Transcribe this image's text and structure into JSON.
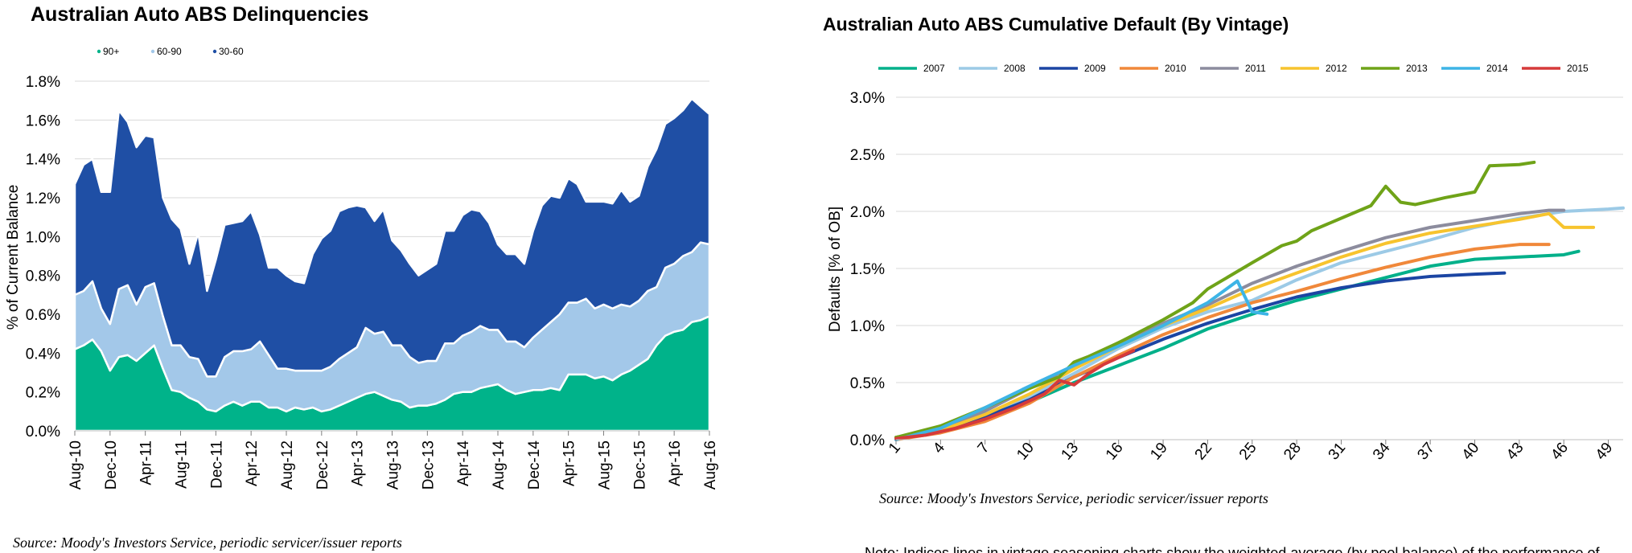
{
  "colors": {
    "d90": "#00b38a",
    "d6090": "#a3c8e9",
    "d3060": "#1f4fa5",
    "v2007": "#00b08a",
    "v2008": "#9ccae6",
    "v2009": "#1b45a3",
    "v2010": "#f0883a",
    "v2011": "#8c8c9e",
    "v2012": "#f7c42e",
    "v2013": "#6fa318",
    "v2014": "#3db4e6",
    "v2015": "#d63a3a"
  },
  "footer": {
    "left_source": "Source: Moody's Investors Service, periodic servicer/issuer reports",
    "right_source": "Source: Moody's Investors Service, periodic servicer/issuer reports",
    "note": "Note:  Indices lines in vintage seasoning charts show the weighted average (by pool balance) of the performance of"
  },
  "chart_data": [
    {
      "type": "area",
      "stacked": true,
      "title": "Australian Auto ABS Delinquencies",
      "xlabel": "",
      "ylabel": "% of Current Balance",
      "ylim": [
        0,
        1.8
      ],
      "ytick_step": 0.2,
      "ytick_labels": [
        "0.0%",
        "0.2%",
        "0.4%",
        "0.6%",
        "0.8%",
        "1.0%",
        "1.2%",
        "1.4%",
        "1.6%",
        "1.8%"
      ],
      "grid": true,
      "legend": "top-left",
      "xtick_labels": [
        "Aug-10",
        "Dec-10",
        "Apr-11",
        "Aug-11",
        "Dec-11",
        "Apr-12",
        "Aug-12",
        "Dec-12",
        "Apr-13",
        "Aug-13",
        "Dec-13",
        "Apr-14",
        "Aug-14",
        "Dec-14",
        "Apr-15",
        "Aug-15",
        "Dec-15",
        "Apr-16",
        "Aug-16"
      ],
      "months": 73,
      "series": [
        {
          "name": "90+",
          "color_key": "d90",
          "values": [
            0.42,
            0.44,
            0.47,
            0.41,
            0.31,
            0.38,
            0.39,
            0.36,
            0.4,
            0.44,
            0.32,
            0.21,
            0.2,
            0.17,
            0.15,
            0.11,
            0.1,
            0.13,
            0.15,
            0.13,
            0.15,
            0.15,
            0.12,
            0.12,
            0.1,
            0.12,
            0.11,
            0.12,
            0.1,
            0.11,
            0.13,
            0.15,
            0.17,
            0.19,
            0.2,
            0.18,
            0.16,
            0.15,
            0.12,
            0.13,
            0.13,
            0.14,
            0.16,
            0.19,
            0.2,
            0.2,
            0.22,
            0.23,
            0.24,
            0.21,
            0.19,
            0.2,
            0.21,
            0.21,
            0.22,
            0.21,
            0.29,
            0.29,
            0.29,
            0.27,
            0.28,
            0.26,
            0.29,
            0.31,
            0.34,
            0.37,
            0.44,
            0.49,
            0.51,
            0.52,
            0.56,
            0.57,
            0.59
          ]
        },
        {
          "name": "60-90",
          "color_key": "d6090",
          "values": [
            0.28,
            0.28,
            0.3,
            0.22,
            0.24,
            0.35,
            0.36,
            0.29,
            0.34,
            0.32,
            0.27,
            0.23,
            0.24,
            0.21,
            0.22,
            0.17,
            0.18,
            0.25,
            0.26,
            0.28,
            0.27,
            0.31,
            0.27,
            0.2,
            0.22,
            0.19,
            0.2,
            0.19,
            0.21,
            0.22,
            0.24,
            0.25,
            0.26,
            0.34,
            0.3,
            0.33,
            0.28,
            0.29,
            0.26,
            0.22,
            0.23,
            0.22,
            0.29,
            0.26,
            0.29,
            0.31,
            0.32,
            0.29,
            0.28,
            0.25,
            0.27,
            0.23,
            0.27,
            0.31,
            0.34,
            0.39,
            0.37,
            0.37,
            0.39,
            0.36,
            0.37,
            0.37,
            0.36,
            0.33,
            0.33,
            0.35,
            0.3,
            0.35,
            0.35,
            0.38,
            0.36,
            0.4,
            0.37
          ]
        },
        {
          "name": "30-60",
          "color_key": "d3060",
          "values": [
            0.57,
            0.65,
            0.63,
            0.6,
            0.68,
            0.92,
            0.84,
            0.81,
            0.78,
            0.75,
            0.61,
            0.65,
            0.6,
            0.48,
            0.65,
            0.44,
            0.6,
            0.68,
            0.66,
            0.67,
            0.71,
            0.55,
            0.45,
            0.52,
            0.48,
            0.46,
            0.45,
            0.6,
            0.68,
            0.7,
            0.76,
            0.75,
            0.73,
            0.62,
            0.58,
            0.63,
            0.54,
            0.49,
            0.48,
            0.45,
            0.47,
            0.5,
            0.58,
            0.58,
            0.62,
            0.63,
            0.59,
            0.55,
            0.44,
            0.45,
            0.45,
            0.43,
            0.55,
            0.64,
            0.65,
            0.6,
            0.64,
            0.61,
            0.5,
            0.55,
            0.53,
            0.54,
            0.59,
            0.54,
            0.54,
            0.64,
            0.71,
            0.74,
            0.75,
            0.75,
            0.79,
            0.7,
            0.67
          ]
        }
      ]
    },
    {
      "type": "line",
      "title": "Australian Auto ABS Cumulative Default (By Vintage)",
      "xlabel": "",
      "ylabel": "Defaults [% of OB]",
      "xlim": [
        1,
        50
      ],
      "xtick_labels": [
        "1",
        "4",
        "7",
        "10",
        "13",
        "16",
        "19",
        "22",
        "25",
        "28",
        "31",
        "34",
        "37",
        "40",
        "43",
        "46",
        "49"
      ],
      "xtick_step": 3,
      "ylim": [
        0,
        3.0
      ],
      "ytick_step": 0.5,
      "ytick_labels": [
        "0.0%",
        "0.5%",
        "1.0%",
        "1.5%",
        "2.0%",
        "2.5%",
        "3.0%"
      ],
      "grid": true,
      "legend": "top",
      "series": [
        {
          "name": "2007",
          "color_key": "v2007",
          "points": [
            [
              1,
              0.02
            ],
            [
              4,
              0.07
            ],
            [
              7,
              0.2
            ],
            [
              10,
              0.33
            ],
            [
              13,
              0.5
            ],
            [
              16,
              0.65
            ],
            [
              19,
              0.8
            ],
            [
              22,
              0.97
            ],
            [
              25,
              1.1
            ],
            [
              28,
              1.22
            ],
            [
              31,
              1.32
            ],
            [
              34,
              1.42
            ],
            [
              37,
              1.52
            ],
            [
              40,
              1.58
            ],
            [
              43,
              1.6
            ],
            [
              46,
              1.62
            ],
            [
              47,
              1.65
            ]
          ]
        },
        {
          "name": "2008",
          "color_key": "v2008",
          "points": [
            [
              1,
              0.0
            ],
            [
              4,
              0.08
            ],
            [
              7,
              0.22
            ],
            [
              10,
              0.38
            ],
            [
              13,
              0.58
            ],
            [
              16,
              0.8
            ],
            [
              19,
              0.98
            ],
            [
              22,
              1.12
            ],
            [
              25,
              1.22
            ],
            [
              28,
              1.4
            ],
            [
              31,
              1.55
            ],
            [
              34,
              1.65
            ],
            [
              37,
              1.75
            ],
            [
              40,
              1.86
            ],
            [
              43,
              1.94
            ],
            [
              46,
              2.0
            ],
            [
              49,
              2.02
            ],
            [
              50,
              2.03
            ]
          ]
        },
        {
          "name": "2009",
          "color_key": "v2009",
          "points": [
            [
              1,
              0.02
            ],
            [
              4,
              0.08
            ],
            [
              7,
              0.2
            ],
            [
              10,
              0.35
            ],
            [
              13,
              0.55
            ],
            [
              16,
              0.72
            ],
            [
              19,
              0.88
            ],
            [
              22,
              1.02
            ],
            [
              25,
              1.14
            ],
            [
              28,
              1.25
            ],
            [
              31,
              1.33
            ],
            [
              34,
              1.39
            ],
            [
              37,
              1.43
            ],
            [
              40,
              1.45
            ],
            [
              42,
              1.46
            ]
          ]
        },
        {
          "name": "2010",
          "color_key": "v2010",
          "points": [
            [
              1,
              0.0
            ],
            [
              4,
              0.06
            ],
            [
              7,
              0.16
            ],
            [
              10,
              0.32
            ],
            [
              13,
              0.55
            ],
            [
              16,
              0.74
            ],
            [
              19,
              0.92
            ],
            [
              22,
              1.07
            ],
            [
              25,
              1.2
            ],
            [
              28,
              1.3
            ],
            [
              31,
              1.41
            ],
            [
              34,
              1.51
            ],
            [
              37,
              1.6
            ],
            [
              40,
              1.67
            ],
            [
              43,
              1.71
            ],
            [
              45,
              1.71
            ]
          ]
        },
        {
          "name": "2011",
          "color_key": "v2011",
          "points": [
            [
              1,
              0.02
            ],
            [
              4,
              0.09
            ],
            [
              7,
              0.25
            ],
            [
              10,
              0.45
            ],
            [
              13,
              0.65
            ],
            [
              16,
              0.85
            ],
            [
              19,
              1.02
            ],
            [
              22,
              1.18
            ],
            [
              25,
              1.37
            ],
            [
              28,
              1.52
            ],
            [
              31,
              1.65
            ],
            [
              34,
              1.77
            ],
            [
              37,
              1.86
            ],
            [
              40,
              1.92
            ],
            [
              43,
              1.98
            ],
            [
              45,
              2.01
            ],
            [
              46,
              2.01
            ]
          ]
        },
        {
          "name": "2012",
          "color_key": "v2012",
          "points": [
            [
              1,
              0.02
            ],
            [
              4,
              0.08
            ],
            [
              7,
              0.22
            ],
            [
              10,
              0.4
            ],
            [
              13,
              0.62
            ],
            [
              16,
              0.82
            ],
            [
              19,
              1.0
            ],
            [
              22,
              1.15
            ],
            [
              25,
              1.32
            ],
            [
              28,
              1.46
            ],
            [
              31,
              1.6
            ],
            [
              34,
              1.72
            ],
            [
              37,
              1.81
            ],
            [
              40,
              1.87
            ],
            [
              43,
              1.93
            ],
            [
              45,
              1.98
            ],
            [
              46,
              1.86
            ],
            [
              48,
              1.86
            ]
          ]
        },
        {
          "name": "2013",
          "color_key": "v2013",
          "points": [
            [
              1,
              0.02
            ],
            [
              4,
              0.12
            ],
            [
              7,
              0.28
            ],
            [
              10,
              0.45
            ],
            [
              12,
              0.55
            ],
            [
              13,
              0.68
            ],
            [
              14,
              0.73
            ],
            [
              16,
              0.85
            ],
            [
              19,
              1.05
            ],
            [
              21,
              1.2
            ],
            [
              22,
              1.32
            ],
            [
              25,
              1.55
            ],
            [
              27,
              1.7
            ],
            [
              28,
              1.74
            ],
            [
              29,
              1.83
            ],
            [
              31,
              1.94
            ],
            [
              33,
              2.05
            ],
            [
              34,
              2.22
            ],
            [
              35,
              2.08
            ],
            [
              36,
              2.06
            ],
            [
              38,
              2.12
            ],
            [
              40,
              2.17
            ],
            [
              41,
              2.4
            ],
            [
              43,
              2.41
            ],
            [
              44,
              2.43
            ]
          ]
        },
        {
          "name": "2014",
          "color_key": "v2014",
          "points": [
            [
              1,
              0.0
            ],
            [
              4,
              0.1
            ],
            [
              7,
              0.28
            ],
            [
              10,
              0.47
            ],
            [
              13,
              0.65
            ],
            [
              16,
              0.82
            ],
            [
              19,
              1.0
            ],
            [
              22,
              1.2
            ],
            [
              24,
              1.39
            ],
            [
              25,
              1.12
            ],
            [
              26,
              1.1
            ]
          ]
        },
        {
          "name": "2015",
          "color_key": "v2015",
          "points": [
            [
              1,
              0.01
            ],
            [
              3,
              0.04
            ],
            [
              5,
              0.1
            ],
            [
              7,
              0.18
            ],
            [
              9,
              0.28
            ],
            [
              11,
              0.4
            ],
            [
              12,
              0.52
            ],
            [
              13,
              0.48
            ],
            [
              14,
              0.58
            ],
            [
              15,
              0.66
            ],
            [
              16,
              0.72
            ],
            [
              17,
              0.78
            ]
          ]
        }
      ]
    }
  ]
}
